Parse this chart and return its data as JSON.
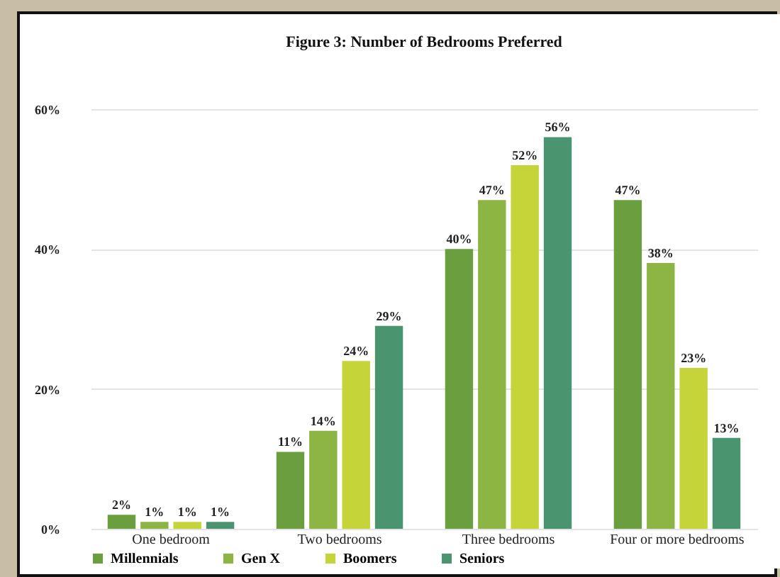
{
  "chart_data": {
    "type": "bar",
    "title": "Figure 3: Number of Bedrooms Preferred",
    "categories": [
      "One bedroom",
      "Two bedrooms",
      "Three bedrooms",
      "Four or more bedrooms"
    ],
    "series": [
      {
        "name": "Millennials",
        "color": "#6a9e3f",
        "values": [
          2,
          11,
          40,
          47
        ],
        "value_labels": [
          "2%",
          "11%",
          "40%",
          "47%"
        ]
      },
      {
        "name": "Gen X",
        "color": "#8db543",
        "values": [
          1,
          14,
          47,
          38
        ],
        "value_labels": [
          "1%",
          "14%",
          "47%",
          "38%"
        ]
      },
      {
        "name": "Boomers",
        "color": "#c5d439",
        "values": [
          1,
          24,
          52,
          23
        ],
        "value_labels": [
          "1%",
          "24%",
          "52%",
          "23%"
        ]
      },
      {
        "name": "Seniors",
        "color": "#4a9470",
        "values": [
          1,
          29,
          56,
          13
        ],
        "value_labels": [
          "1%",
          "29%",
          "56%",
          "13%"
        ]
      }
    ],
    "ylim": [
      0,
      60
    ],
    "yticks": [
      {
        "value": 0,
        "label": "0%"
      },
      {
        "value": 20,
        "label": "20%"
      },
      {
        "value": 40,
        "label": "40%"
      },
      {
        "value": 60,
        "label": "60%"
      }
    ],
    "grid": "y",
    "legend": "bottom"
  }
}
